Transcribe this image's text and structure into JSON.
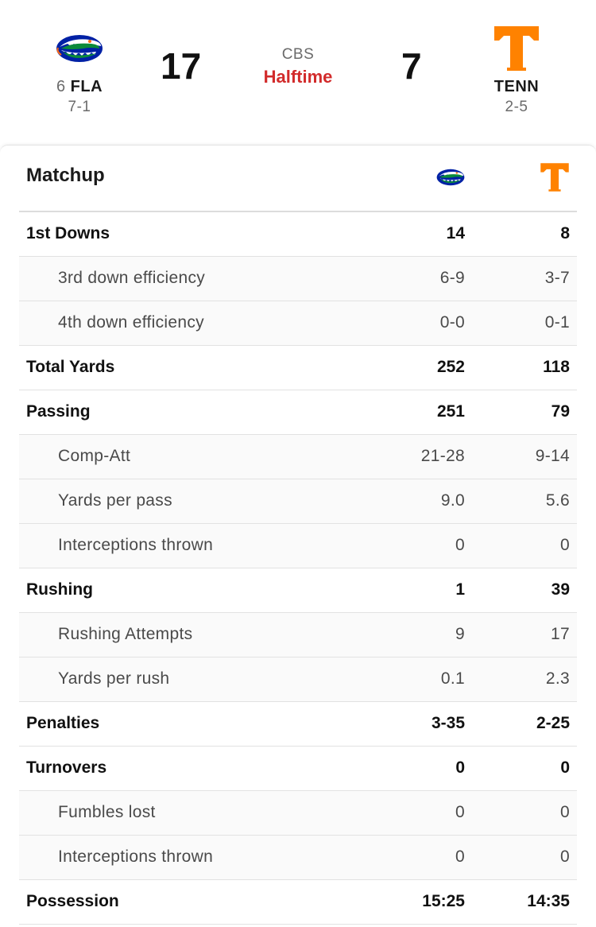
{
  "game": {
    "network": "CBS",
    "status": "Halftime",
    "away": {
      "rank": "6",
      "abbr": "FLA",
      "record": "7-1",
      "score": "17",
      "logo_icon": "gator-logo-icon",
      "color": "#0021a5"
    },
    "home": {
      "abbr": "TENN",
      "record": "2-5",
      "score": "7",
      "logo_icon": "power-t-logo-icon",
      "color": "#ff8200"
    }
  },
  "matchup": {
    "title": "Matchup",
    "rows": [
      {
        "label": "1st Downs",
        "away": "14",
        "home": "8",
        "type": "main"
      },
      {
        "label": "3rd down efficiency",
        "away": "6-9",
        "home": "3-7",
        "type": "sub"
      },
      {
        "label": "4th down efficiency",
        "away": "0-0",
        "home": "0-1",
        "type": "sub"
      },
      {
        "label": "Total Yards",
        "away": "252",
        "home": "118",
        "type": "main"
      },
      {
        "label": "Passing",
        "away": "251",
        "home": "79",
        "type": "main"
      },
      {
        "label": "Comp-Att",
        "away": "21-28",
        "home": "9-14",
        "type": "sub"
      },
      {
        "label": "Yards per pass",
        "away": "9.0",
        "home": "5.6",
        "type": "sub"
      },
      {
        "label": "Interceptions thrown",
        "away": "0",
        "home": "0",
        "type": "sub"
      },
      {
        "label": "Rushing",
        "away": "1",
        "home": "39",
        "type": "main"
      },
      {
        "label": "Rushing Attempts",
        "away": "9",
        "home": "17",
        "type": "sub"
      },
      {
        "label": "Yards per rush",
        "away": "0.1",
        "home": "2.3",
        "type": "sub"
      },
      {
        "label": "Penalties",
        "away": "3-35",
        "home": "2-25",
        "type": "main"
      },
      {
        "label": "Turnovers",
        "away": "0",
        "home": "0",
        "type": "main"
      },
      {
        "label": "Fumbles lost",
        "away": "0",
        "home": "0",
        "type": "sub"
      },
      {
        "label": "Interceptions thrown",
        "away": "0",
        "home": "0",
        "type": "sub"
      },
      {
        "label": "Possession",
        "away": "15:25",
        "home": "14:35",
        "type": "main"
      }
    ]
  }
}
